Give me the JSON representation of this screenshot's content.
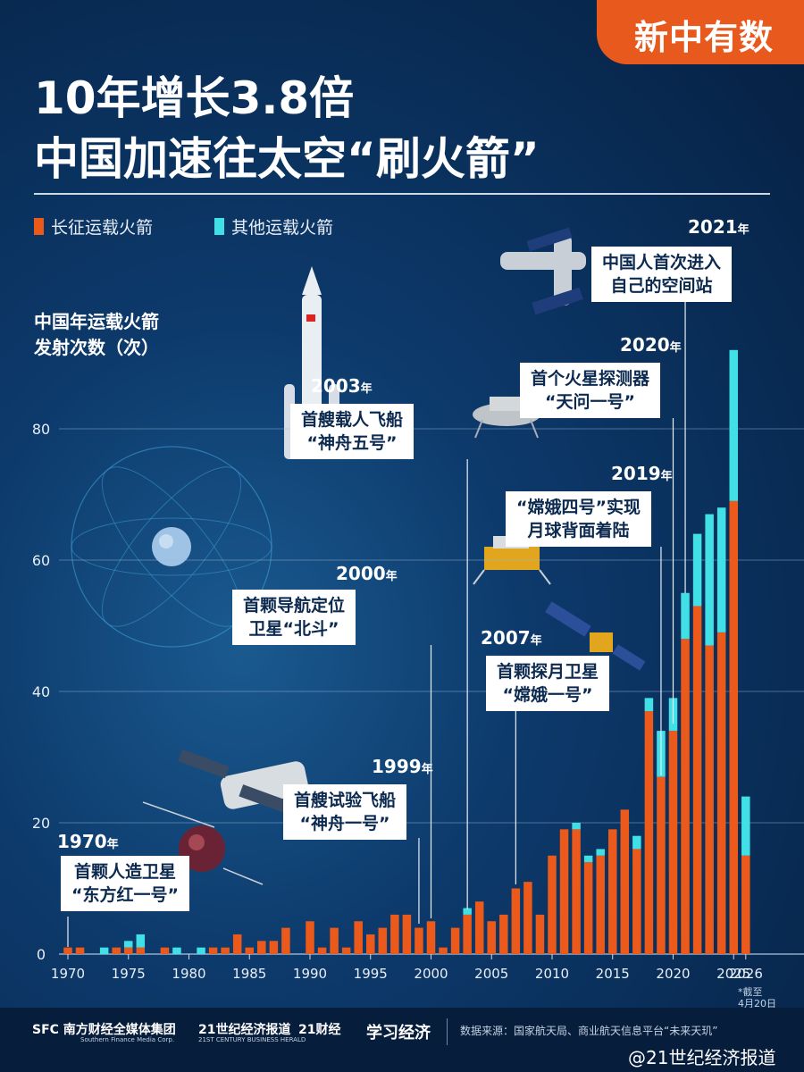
{
  "brand": {
    "name": "新中有数"
  },
  "title": {
    "line1": "10年增长3.8倍",
    "line2": "中国加速往太空“刷火箭”"
  },
  "legend": [
    {
      "label": "长征运载火箭",
      "color": "#ec5a1b"
    },
    {
      "label": "其他运载火箭",
      "color": "#41e0e6"
    }
  ],
  "y_axis_label": {
    "line1": "中国年运载火箭",
    "line2": "发射次数（次）"
  },
  "chart_data": {
    "type": "bar",
    "stacked": true,
    "x": [
      1970,
      1971,
      1972,
      1973,
      1974,
      1975,
      1976,
      1977,
      1978,
      1979,
      1980,
      1981,
      1982,
      1983,
      1984,
      1985,
      1986,
      1987,
      1988,
      1989,
      1990,
      1991,
      1992,
      1993,
      1994,
      1995,
      1996,
      1997,
      1998,
      1999,
      2000,
      2001,
      2002,
      2003,
      2004,
      2005,
      2006,
      2007,
      2008,
      2009,
      2010,
      2011,
      2012,
      2013,
      2014,
      2015,
      2016,
      2017,
      2018,
      2019,
      2020,
      2021,
      2022,
      2023,
      2024,
      2025,
      2026
    ],
    "series": [
      {
        "name": "长征运载火箭",
        "values": [
          1,
          1,
          0,
          0,
          1,
          1,
          1,
          0,
          1,
          0,
          0,
          0,
          1,
          1,
          3,
          1,
          2,
          2,
          4,
          0,
          5,
          1,
          4,
          1,
          5,
          3,
          4,
          6,
          6,
          4,
          5,
          1,
          4,
          6,
          8,
          5,
          6,
          10,
          11,
          6,
          15,
          19,
          19,
          14,
          15,
          19,
          22,
          16,
          37,
          27,
          34,
          48,
          53,
          47,
          49,
          69,
          15
        ]
      },
      {
        "name": "其他运载火箭",
        "values": [
          0,
          0,
          0,
          1,
          0,
          1,
          2,
          0,
          0,
          1,
          0,
          1,
          0,
          0,
          0,
          0,
          0,
          0,
          0,
          0,
          0,
          0,
          0,
          0,
          0,
          0,
          0,
          0,
          0,
          0,
          0,
          0,
          0,
          1,
          0,
          0,
          0,
          0,
          0,
          0,
          0,
          0,
          1,
          1,
          1,
          0,
          0,
          2,
          2,
          7,
          5,
          7,
          11,
          20,
          19,
          23,
          9
        ]
      }
    ],
    "x_ticks": [
      "1970",
      "1975",
      "1980",
      "1985",
      "1990",
      "1995",
      "2000",
      "2005",
      "2010",
      "2015",
      "2020",
      "2025",
      "2026"
    ],
    "y_ticks": [
      0,
      20,
      40,
      60,
      80
    ],
    "ylim": [
      0,
      93
    ],
    "grid": true
  },
  "annotations": [
    {
      "year": "1970",
      "text1": "首颗人造卫星",
      "text2": "“东方红一号”"
    },
    {
      "year": "1999",
      "text1": "首艘试验飞船",
      "text2": "“神舟一号”"
    },
    {
      "year": "2000",
      "text1": "首颗导航定位",
      "text2": "卫星“北斗”"
    },
    {
      "year": "2003",
      "text1": "首艘载人飞船",
      "text2": "“神舟五号”"
    },
    {
      "year": "2007",
      "text1": "首颗探月卫星",
      "text2": "“嫦娥一号”"
    },
    {
      "year": "2019",
      "text1": "“嫦娥四号”实现",
      "text2": "月球背面着陆"
    },
    {
      "year": "2020",
      "text1": "首个火星探测器",
      "text2": "“天问一号”"
    },
    {
      "year": "2021",
      "text1": "中国人首次进入",
      "text2": "自己的空间站"
    }
  ],
  "year_suffix": "年",
  "note": {
    "line1": "*截至",
    "line2": "4月20日"
  },
  "footer": {
    "logo1": "SFC 南方财经全媒体集团",
    "logo1_sub": "Southern Finance Media Corp.",
    "logo2": "21世纪经济报道",
    "logo2_sub": "21ST CENTURY BUSINESS HERALD",
    "logo3": "21财经",
    "logo4": "学习经济",
    "source": "数据来源：国家航天局、商业航天信息平台“未来天玑”",
    "weibo": "@21世纪经济报道"
  }
}
